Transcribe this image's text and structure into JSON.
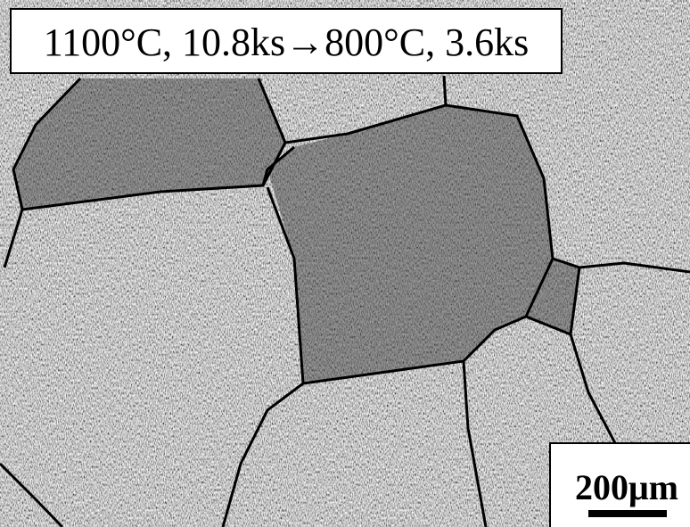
{
  "caption": "1100°C, 10.8ks→800°C, 3.6ks",
  "scale_bar": {
    "label": "200μm"
  }
}
